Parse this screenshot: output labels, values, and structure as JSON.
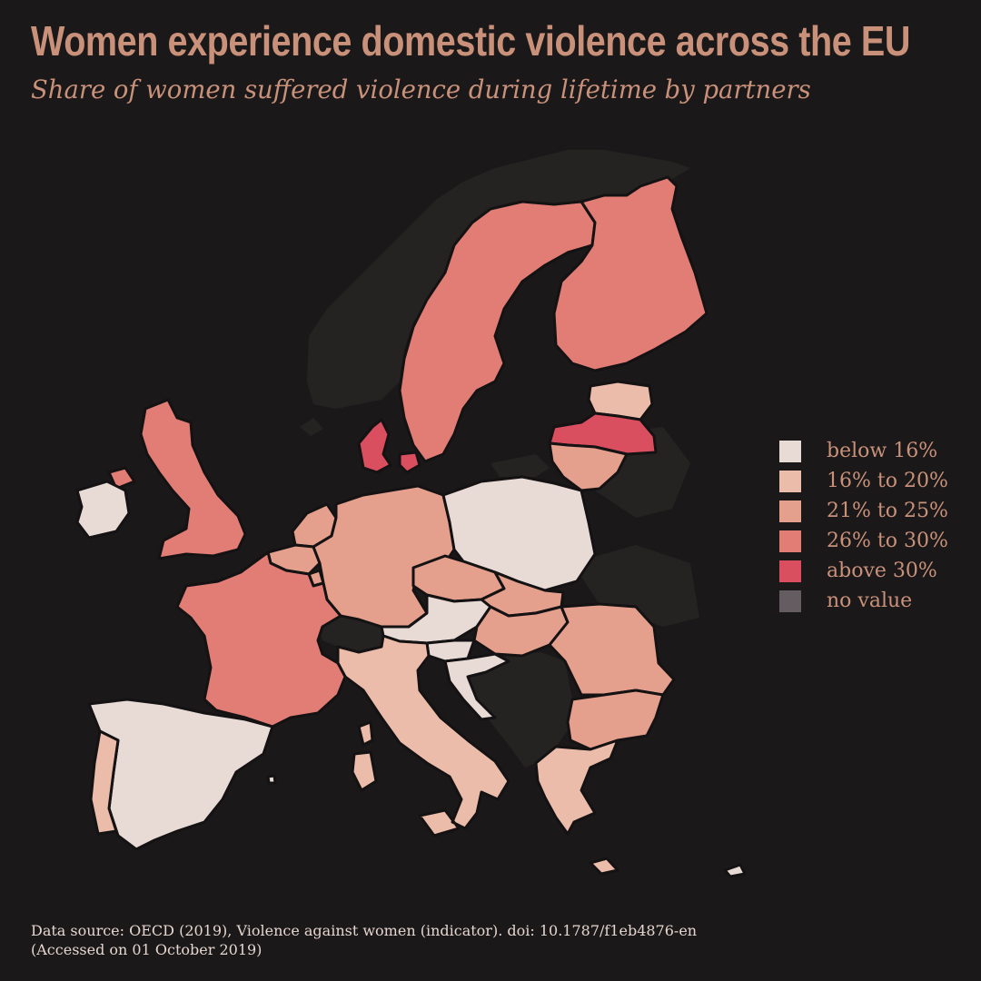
{
  "title": "Women experience domestic violence across the EU",
  "subtitle": "Share of women suffered violence during lifetime by partners",
  "legend": [
    {
      "label": "below 16%",
      "color": "#e8dbd6"
    },
    {
      "label": "16% to 20%",
      "color": "#ecbcaa"
    },
    {
      "label": "21% to 25%",
      "color": "#e59f8d"
    },
    {
      "label": "26% to 30%",
      "color": "#e27d76"
    },
    {
      "label": "above 30%",
      "color": "#d94f5f"
    },
    {
      "label": "no value",
      "color": "#655c61"
    }
  ],
  "source": {
    "line1": "Data source: OECD (2019), Violence against women (indicator). doi: 10.1787/f1eb4876-en",
    "line2": "(Accessed on 01 October 2019)"
  },
  "colors": {
    "background": "#1a1819",
    "non_eu": "#252322",
    "text": "#c9917a"
  },
  "regions": [
    {
      "name": "sweden",
      "category": 3
    },
    {
      "name": "finland",
      "category": 3
    },
    {
      "name": "estonia",
      "category": 1
    },
    {
      "name": "latvia",
      "category": 4
    },
    {
      "name": "lithuania",
      "category": 2
    },
    {
      "name": "denmark",
      "category": 4
    },
    {
      "name": "united-kingdom",
      "category": 3
    },
    {
      "name": "ireland",
      "category": 0
    },
    {
      "name": "netherlands",
      "category": 2
    },
    {
      "name": "belgium",
      "category": 2
    },
    {
      "name": "luxembourg",
      "category": 2
    },
    {
      "name": "germany",
      "category": 2
    },
    {
      "name": "poland",
      "category": 0
    },
    {
      "name": "czechia",
      "category": 2
    },
    {
      "name": "slovakia",
      "category": 2
    },
    {
      "name": "austria",
      "category": 0
    },
    {
      "name": "hungary",
      "category": 2
    },
    {
      "name": "slovenia",
      "category": 0
    },
    {
      "name": "croatia",
      "category": 0
    },
    {
      "name": "romania",
      "category": 2
    },
    {
      "name": "bulgaria",
      "category": 2
    },
    {
      "name": "greece",
      "category": 1
    },
    {
      "name": "italy",
      "category": 1
    },
    {
      "name": "france",
      "category": 3
    },
    {
      "name": "spain",
      "category": 0
    },
    {
      "name": "portugal",
      "category": 1
    },
    {
      "name": "malta",
      "category": 0
    },
    {
      "name": "cyprus",
      "category": 0
    }
  ]
}
